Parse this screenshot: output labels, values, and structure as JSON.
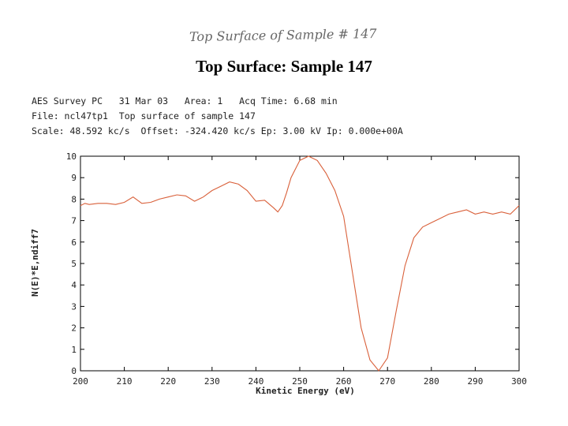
{
  "handwritten_note": "Top Surface of Sample # 147",
  "slide_title": "Top Surface: Sample 147",
  "header": {
    "line1": "AES Survey PC   31 Mar 03   Area: 1   Acq Time: 6.68 min",
    "line2": "File: ncl47tp1  Top surface of sample 147",
    "line3": "Scale: 48.592 kc/s  Offset: -324.420 kc/s Ep: 3.00 kV Ip: 0.000e+00A"
  },
  "colors": {
    "trace": "#d9603a",
    "axis": "#000000"
  },
  "chart_data": {
    "type": "line",
    "xlabel": "Kinetic Energy (eV)",
    "ylabel": "N(E)*E,ndiff7",
    "xlim": [
      200,
      300
    ],
    "ylim": [
      0,
      10
    ],
    "xticks": [
      200,
      210,
      220,
      230,
      240,
      250,
      260,
      270,
      280,
      290,
      300
    ],
    "yticks": [
      0,
      1,
      2,
      3,
      4,
      5,
      6,
      7,
      8,
      9,
      10
    ],
    "series": [
      {
        "x": [
          200,
          201,
          202,
          204,
          206,
          208,
          210,
          212,
          214,
          216,
          218,
          220,
          222,
          224,
          226,
          228,
          230,
          232,
          234,
          236,
          238,
          240,
          242,
          244,
          245,
          246,
          247,
          248,
          250,
          252,
          254,
          256,
          258,
          260,
          262,
          264,
          266,
          268,
          270,
          272,
          274,
          276,
          278,
          280,
          282,
          284,
          286,
          288,
          290,
          292,
          294,
          296,
          298,
          300
        ],
        "y": [
          7.7,
          7.8,
          7.75,
          7.8,
          7.8,
          7.75,
          7.85,
          8.1,
          7.8,
          7.85,
          8.0,
          8.1,
          8.2,
          8.15,
          7.9,
          8.1,
          8.4,
          8.6,
          8.8,
          8.7,
          8.4,
          7.9,
          7.95,
          7.6,
          7.4,
          7.7,
          8.3,
          9.0,
          9.8,
          10.0,
          9.8,
          9.2,
          8.4,
          7.2,
          4.6,
          2.0,
          0.5,
          0.0,
          0.6,
          2.8,
          4.9,
          6.2,
          6.7,
          6.9,
          7.1,
          7.3,
          7.4,
          7.5,
          7.3,
          7.4,
          7.3,
          7.4,
          7.3,
          7.7
        ]
      }
    ]
  }
}
